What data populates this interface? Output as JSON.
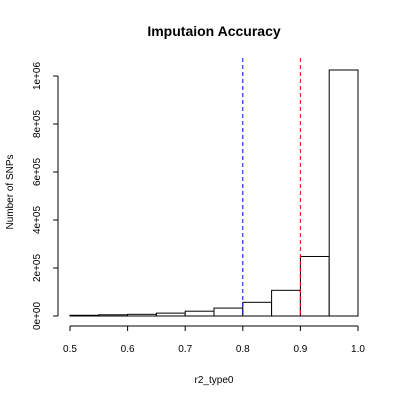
{
  "chart_data": {
    "type": "bar",
    "title": "Imputaion Accuracy",
    "xlabel": "r2_type0",
    "ylabel": "Number of SNPs",
    "xlim": [
      0.5,
      1.0
    ],
    "ylim": [
      0,
      1000000
    ],
    "grid": false,
    "bins": [
      {
        "x0": 0.5,
        "x1": 0.55,
        "count": 3000
      },
      {
        "x0": 0.55,
        "x1": 0.6,
        "count": 5000
      },
      {
        "x0": 0.6,
        "x1": 0.65,
        "count": 7000
      },
      {
        "x0": 0.65,
        "x1": 0.7,
        "count": 12000
      },
      {
        "x0": 0.7,
        "x1": 0.75,
        "count": 20000
      },
      {
        "x0": 0.75,
        "x1": 0.8,
        "count": 33000
      },
      {
        "x0": 0.8,
        "x1": 0.85,
        "count": 57000
      },
      {
        "x0": 0.85,
        "x1": 0.9,
        "count": 107000
      },
      {
        "x0": 0.9,
        "x1": 0.95,
        "count": 248000
      },
      {
        "x0": 0.95,
        "x1": 1.0,
        "count": 1025000
      }
    ],
    "reference_lines": [
      {
        "x": 0.8,
        "color": "#0000ff",
        "style": "dashed"
      },
      {
        "x": 0.9,
        "color": "#ff0000",
        "style": "dashed"
      }
    ],
    "x_ticks": [
      {
        "value": 0.5,
        "label": "0.5"
      },
      {
        "value": 0.6,
        "label": "0.6"
      },
      {
        "value": 0.7,
        "label": "0.7"
      },
      {
        "value": 0.8,
        "label": "0.8"
      },
      {
        "value": 0.9,
        "label": "0.9"
      },
      {
        "value": 1.0,
        "label": "1.0"
      }
    ],
    "y_ticks": [
      {
        "value": 0,
        "label": "0e+00"
      },
      {
        "value": 200000,
        "label": "2e+05"
      },
      {
        "value": 400000,
        "label": "4e+05"
      },
      {
        "value": 600000,
        "label": "6e+05"
      },
      {
        "value": 800000,
        "label": "8e+05"
      },
      {
        "value": 1000000,
        "label": "1e+06"
      }
    ]
  }
}
